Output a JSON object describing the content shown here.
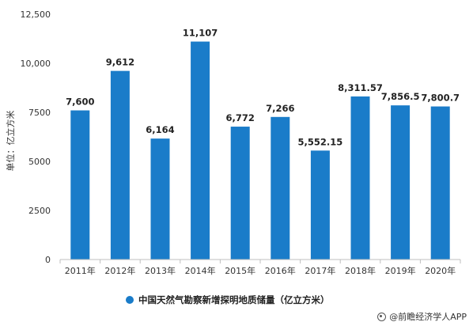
{
  "chart_data": {
    "type": "bar",
    "categories": [
      "2011年",
      "2012年",
      "2013年",
      "2014年",
      "2015年",
      "2016年",
      "2017年",
      "2018年",
      "2019年",
      "2020年"
    ],
    "series": [
      {
        "name": "中国天然气勘察新增探明地质储量（亿立方米）",
        "values": [
          7600,
          9612,
          6164,
          11107,
          6772,
          7266,
          5552.15,
          8311.57,
          7856.5,
          7800.7
        ],
        "labels": [
          "7,600",
          "9,612",
          "6,164",
          "11,107",
          "6,772",
          "7,266",
          "5,552.15",
          "8,311.57",
          "7,856.5",
          "7,800.7"
        ],
        "color": "#1a7cc9"
      }
    ],
    "ylabel": "单位：亿立方米",
    "ylim": [
      0,
      12500
    ],
    "yticks": [
      0,
      2500,
      5000,
      7500,
      10000,
      12500
    ],
    "ytick_labels": [
      "0",
      "2500",
      "5000",
      "7500",
      "10,000",
      "12,500"
    ],
    "legend_position": "bottom",
    "grid": false
  },
  "source": {
    "text": "@前瞻经济学人APP"
  }
}
